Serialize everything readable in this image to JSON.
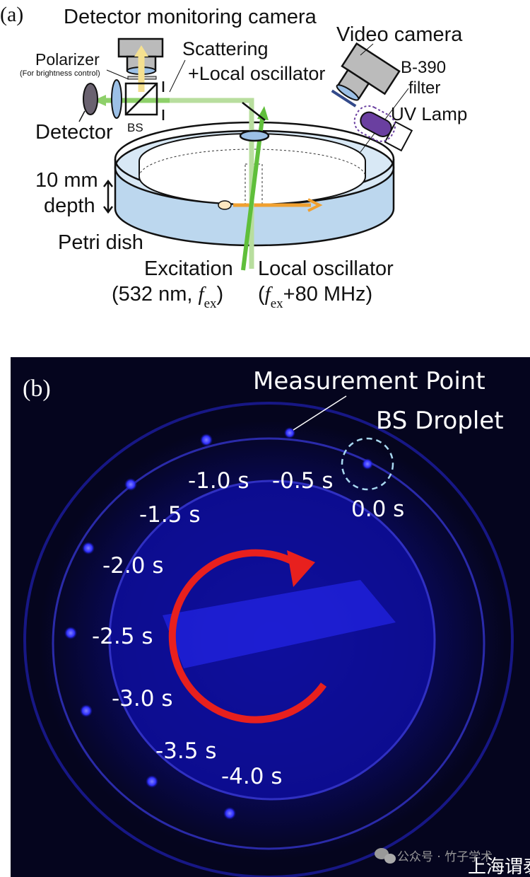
{
  "panel_a": {
    "label": "(a)",
    "detector_camera": "Detector monitoring camera",
    "video_camera": "Video camera",
    "scattering": "Scattering",
    "local_oscillator_beam": "+Local oscillator",
    "polarizer": "Polarizer",
    "polarizer_note": "(For brightness control)",
    "b390": "B-390",
    "filter": "filter",
    "uv_lamp": "UV Lamp",
    "detector": "Detector",
    "bs": "BS",
    "depth_value": "10 mm",
    "depth_word": "depth",
    "petri_dish": "Petri dish",
    "excitation": "Excitation",
    "excitation_params": "(532 nm, ",
    "f": "f",
    "ex": "ex",
    "close_paren": ")",
    "local_oscillator": "Local oscillator",
    "lo_open": "(",
    "lo_params": "+80 MHz)",
    "colors": {
      "green_beam": "#6cc04a",
      "water": "#bcd7ee",
      "orange": "#f0a030",
      "uv": "#6a3fa0"
    }
  },
  "panel_b": {
    "label": "(b)",
    "measurement_point": "Measurement Point",
    "bs_droplet": "BS Droplet",
    "times": [
      "0.0 s",
      "-0.5 s",
      "-1.0 s",
      "-1.5 s",
      "-2.0 s",
      "-2.5 s",
      "-3.0 s",
      "-3.5 s",
      "-4.0 s"
    ],
    "colors": {
      "background": "#05051e",
      "glow": "#2a2cff",
      "arrow": "#e8201e",
      "ring": "#a8d8f0"
    }
  },
  "watermark": {
    "text": "公众号 · 竹子学术",
    "org": "上海谓泰"
  }
}
